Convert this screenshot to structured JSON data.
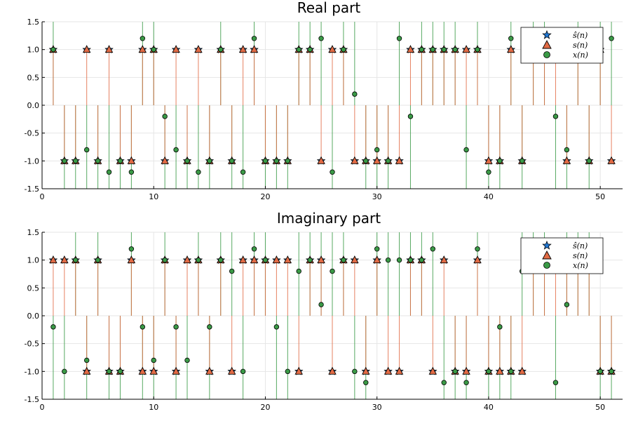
{
  "colors": {
    "s_hat": "#1f77d4",
    "s": "#e26b45",
    "x": "#3a9a46"
  },
  "legend": [
    {
      "key": "s_hat",
      "label": "ŝ(n)",
      "marker": "star"
    },
    {
      "key": "s",
      "label": "s(n)",
      "marker": "triangle"
    },
    {
      "key": "x",
      "label": "x(n)",
      "marker": "circle"
    }
  ],
  "chart_data": [
    {
      "type": "scatter",
      "title": "Real part",
      "xlim": [
        0,
        52
      ],
      "ylim": [
        -1.5,
        1.5
      ],
      "xticks": [
        0,
        10,
        20,
        30,
        40,
        50
      ],
      "yticks": [
        -1.5,
        -1.0,
        -0.5,
        0.0,
        0.5,
        1.0,
        1.5
      ],
      "ytick_labels": [
        "-1.5",
        "-1.0",
        "-0.5",
        "0.0",
        "0.5",
        "1.0",
        "1.5"
      ],
      "legend_position": "top-right",
      "grid": true,
      "n": [
        1,
        2,
        3,
        4,
        5,
        6,
        7,
        8,
        9,
        10,
        11,
        12,
        13,
        14,
        15,
        16,
        17,
        18,
        19,
        20,
        21,
        22,
        23,
        24,
        25,
        26,
        27,
        28,
        29,
        30,
        31,
        32,
        33,
        34,
        35,
        36,
        37,
        38,
        39,
        40,
        41,
        42,
        43,
        44,
        45,
        46,
        47,
        48,
        49,
        50,
        51
      ],
      "series": [
        {
          "key": "x",
          "name": "x(n)",
          "values": [
            1.0,
            -1.0,
            -1.0,
            -0.8,
            -1.0,
            -1.2,
            -1.0,
            -1.2,
            1.2,
            1.0,
            -0.2,
            -0.8,
            -1.0,
            -1.2,
            -1.0,
            1.0,
            -1.0,
            -1.2,
            1.2,
            -1.0,
            -1.0,
            -1.0,
            1.0,
            1.0,
            1.2,
            -1.2,
            1.0,
            0.2,
            -1.0,
            -0.8,
            -1.0,
            1.2,
            -0.2,
            1.0,
            1.0,
            1.0,
            1.0,
            -0.8,
            1.0,
            -1.2,
            -1.0,
            1.2,
            -1.0,
            1.0,
            1.0,
            -0.2,
            -0.8,
            1.0,
            -1.0,
            1.0,
            1.2
          ]
        },
        {
          "key": "s",
          "name": "s(n)",
          "values": [
            1,
            -1,
            -1,
            1,
            -1,
            1,
            -1,
            -1,
            1,
            1,
            -1,
            1,
            -1,
            1,
            -1,
            1,
            -1,
            1,
            1,
            -1,
            -1,
            -1,
            1,
            1,
            -1,
            1,
            1,
            -1,
            -1,
            -1,
            -1,
            -1,
            1,
            1,
            1,
            1,
            1,
            1,
            1,
            -1,
            -1,
            1,
            -1,
            1,
            1,
            1,
            -1,
            1,
            -1,
            1,
            -1
          ]
        },
        {
          "key": "s_hat",
          "name": "ŝ(n)",
          "values": [
            1,
            -1,
            -1,
            1,
            -1,
            1,
            -1,
            -1,
            1,
            1,
            -1,
            1,
            -1,
            1,
            -1,
            1,
            -1,
            1,
            1,
            -1,
            -1,
            -1,
            1,
            1,
            -1,
            1,
            1,
            -1,
            -1,
            -1,
            -1,
            -1,
            1,
            1,
            1,
            1,
            1,
            1,
            1,
            -1,
            -1,
            1,
            -1,
            1,
            1,
            1,
            -1,
            1,
            -1,
            1,
            -1
          ]
        }
      ]
    },
    {
      "type": "scatter",
      "title": "Imaginary part",
      "xlim": [
        0,
        52
      ],
      "ylim": [
        -1.5,
        1.5
      ],
      "xticks": [
        0,
        10,
        20,
        30,
        40,
        50
      ],
      "yticks": [
        -1.5,
        -1.0,
        -0.5,
        0.0,
        0.5,
        1.0,
        1.5
      ],
      "ytick_labels": [
        "-1.5",
        "-1.0",
        "-0.5",
        "0.0",
        "0.5",
        "1.0",
        "1.5"
      ],
      "legend_position": "top-right",
      "grid": true,
      "n": [
        1,
        2,
        3,
        4,
        5,
        6,
        7,
        8,
        9,
        10,
        11,
        12,
        13,
        14,
        15,
        16,
        17,
        18,
        19,
        20,
        21,
        22,
        23,
        24,
        25,
        26,
        27,
        28,
        29,
        30,
        31,
        32,
        33,
        34,
        35,
        36,
        37,
        38,
        39,
        40,
        41,
        42,
        43,
        44,
        45,
        46,
        47,
        48,
        49,
        50,
        51
      ],
      "series": [
        {
          "key": "x",
          "name": "x(n)",
          "values": [
            -0.2,
            -1.0,
            1.0,
            -0.8,
            1.0,
            -1.0,
            -1.0,
            1.2,
            -0.2,
            -0.8,
            1.0,
            -0.2,
            -0.8,
            1.0,
            -0.2,
            1.0,
            0.8,
            -1.0,
            1.2,
            1.0,
            -0.2,
            -1.0,
            0.8,
            1.0,
            0.2,
            0.8,
            1.0,
            -1.0,
            -1.2,
            1.2,
            1.0,
            1.0,
            1.0,
            1.0,
            1.2,
            -1.2,
            -1.0,
            -1.2,
            1.2,
            -1.0,
            -0.2,
            -1.0,
            0.8,
            1.0,
            1.0,
            -1.2,
            0.2,
            1.0,
            1.0,
            -1.0,
            -1.0
          ]
        },
        {
          "key": "s",
          "name": "s(n)",
          "values": [
            1,
            1,
            1,
            -1,
            1,
            -1,
            -1,
            1,
            -1,
            -1,
            1,
            -1,
            1,
            1,
            -1,
            1,
            -1,
            1,
            1,
            1,
            1,
            1,
            -1,
            1,
            1,
            -1,
            1,
            1,
            -1,
            1,
            -1,
            -1,
            1,
            1,
            -1,
            1,
            -1,
            -1,
            1,
            -1,
            -1,
            -1,
            -1,
            1,
            1,
            1,
            1,
            1,
            1,
            -1,
            -1
          ]
        },
        {
          "key": "s_hat",
          "name": "ŝ(n)",
          "values": [
            1,
            1,
            1,
            -1,
            1,
            -1,
            -1,
            1,
            -1,
            -1,
            1,
            -1,
            1,
            1,
            -1,
            1,
            -1,
            1,
            1,
            1,
            1,
            1,
            -1,
            1,
            1,
            -1,
            1,
            1,
            -1,
            1,
            -1,
            -1,
            1,
            1,
            -1,
            1,
            -1,
            -1,
            1,
            -1,
            -1,
            -1,
            -1,
            1,
            1,
            1,
            1,
            1,
            1,
            -1,
            -1
          ]
        }
      ]
    }
  ]
}
